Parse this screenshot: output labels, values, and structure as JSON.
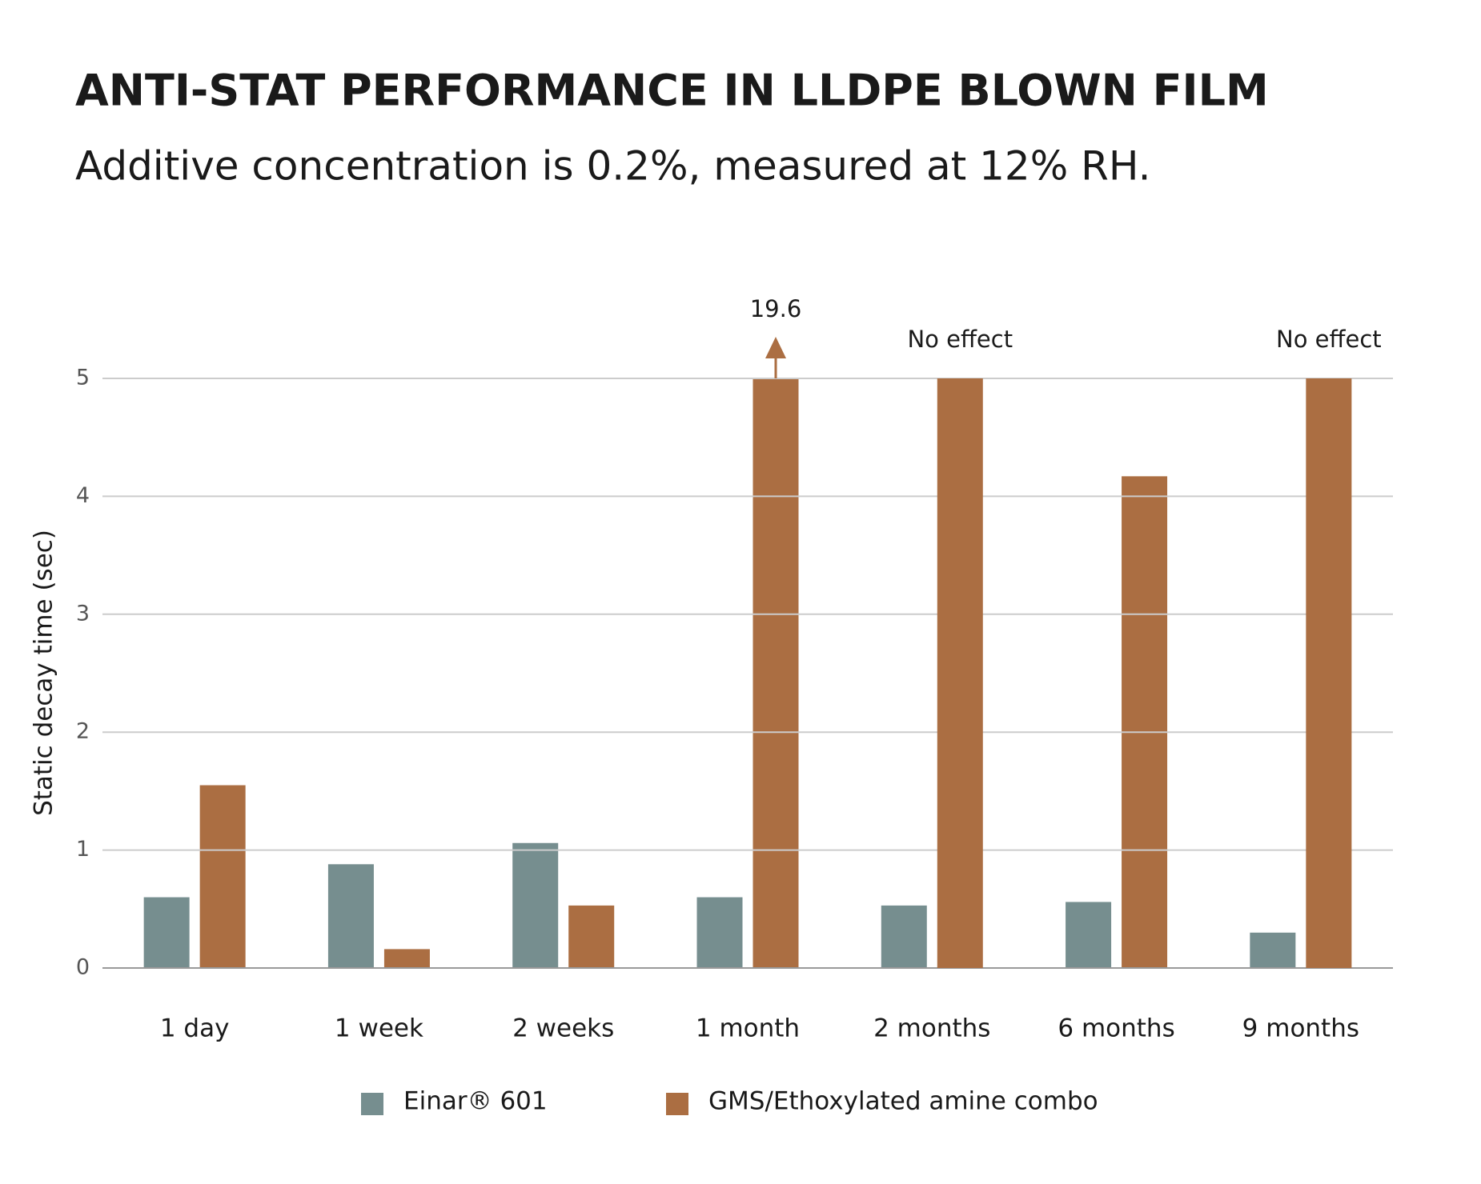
{
  "chart_data": {
    "type": "bar",
    "title": "ANTI-STAT PERFORMANCE IN LLDPE BLOWN FILM",
    "subtitle": "Additive concentration is 0.2%, measured at 12% RH.",
    "y_label": "Static decay time (sec)",
    "categories": [
      "1 day",
      "1 week",
      "2 weeks",
      "1 month",
      "2 months",
      "6 months",
      "9 months"
    ],
    "series": [
      {
        "name": "Einar® 601",
        "color": "#768e8f",
        "values": [
          0.6,
          0.88,
          1.06,
          0.6,
          0.53,
          0.56,
          0.3
        ]
      },
      {
        "name": "GMS/Ethoxylated amine combo",
        "color": "#ab6e42",
        "values": [
          1.55,
          0.16,
          0.53,
          19.6,
          null,
          4.17,
          null
        ],
        "value_labels": [
          null,
          null,
          null,
          "19.6",
          "No effect",
          null,
          "No effect"
        ]
      }
    ],
    "ylim": [
      0,
      5
    ],
    "yticks": [
      0,
      1,
      2,
      3,
      4,
      5
    ],
    "grid": true
  }
}
